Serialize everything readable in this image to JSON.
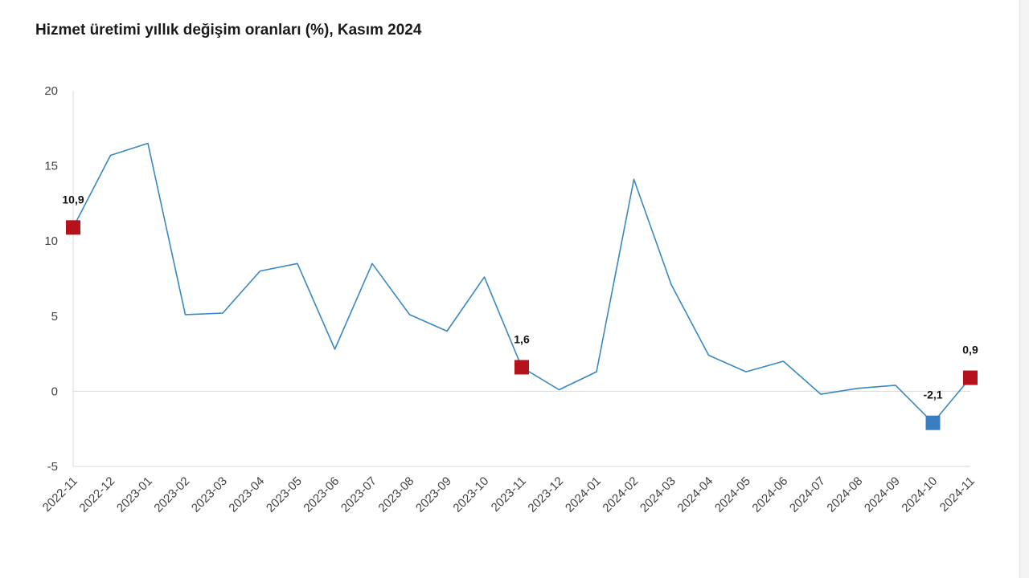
{
  "chart_data": {
    "type": "line",
    "title": "Hizmet üretimi yıllık değişim oranları (%), Kasım 2024",
    "xlabel": "",
    "ylabel": "",
    "ylim": [
      -5,
      20
    ],
    "yticks": [
      "20",
      "15",
      "10",
      "5",
      "0",
      "-5"
    ],
    "grid": false,
    "categories": [
      "2022-11",
      "2022-12",
      "2023-01",
      "2023-02",
      "2023-03",
      "2023-04",
      "2023-05",
      "2023-06",
      "2023-07",
      "2023-08",
      "2023-09",
      "2023-10",
      "2023-11",
      "2023-12",
      "2024-01",
      "2024-02",
      "2024-03",
      "2024-04",
      "2024-05",
      "2024-06",
      "2024-07",
      "2024-08",
      "2024-09",
      "2024-10",
      "2024-11"
    ],
    "series": [
      {
        "name": "Hizmet üretimi",
        "color": "#3a88c0",
        "values": [
          10.9,
          15.7,
          16.5,
          5.1,
          5.2,
          8.0,
          8.5,
          2.8,
          8.5,
          5.1,
          4.0,
          7.6,
          1.6,
          0.1,
          1.3,
          14.1,
          7.1,
          2.4,
          1.3,
          2.0,
          -0.2,
          0.2,
          0.4,
          -2.1,
          0.9
        ]
      }
    ],
    "highlighted_points": [
      {
        "index": 0,
        "label": "10,9",
        "color": "#b5121b"
      },
      {
        "index": 12,
        "label": "1,6",
        "color": "#b5121b"
      },
      {
        "index": 23,
        "label": "-2,1",
        "color": "#3a7ebf"
      },
      {
        "index": 24,
        "label": "0,9",
        "color": "#b5121b"
      }
    ]
  }
}
